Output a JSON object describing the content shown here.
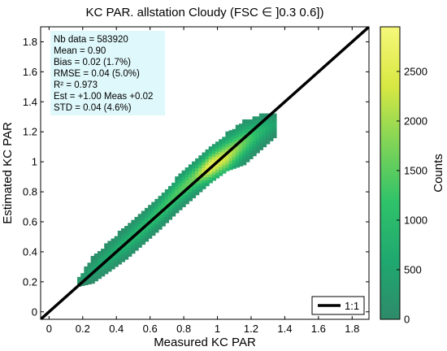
{
  "chart_data": {
    "type": "heatmap",
    "title": "KC PAR. allstation  Cloudy (FSC ∈ ]0.3 0.6])",
    "xlabel": "Measured KC PAR",
    "ylabel": "Estimated KC PAR",
    "xlim": [
      -0.05,
      1.9
    ],
    "ylim": [
      -0.05,
      1.9
    ],
    "xticks": [
      "0",
      "0.2",
      "0.4",
      "0.6",
      "0.8",
      "1",
      "1.2",
      "1.4",
      "1.6",
      "1.8"
    ],
    "yticks": [
      "0",
      "0.2",
      "0.4",
      "0.6",
      "0.8",
      "1",
      "1.2",
      "1.4",
      "1.6",
      "1.8"
    ],
    "colorbar": {
      "label": "Counts",
      "range": [
        0,
        2950
      ],
      "ticks": [
        "0",
        "500",
        "1000",
        "1500",
        "2000",
        "2500"
      ],
      "colors": [
        "#2e8b6a",
        "#1fa86f",
        "#2fc26a",
        "#7fd457",
        "#d9e843",
        "#f5f77a"
      ]
    },
    "density_profile": {
      "x": [
        0.17,
        0.25,
        0.35,
        0.45,
        0.55,
        0.65,
        0.75,
        0.85,
        0.95,
        1.05,
        1.15,
        1.25,
        1.33
      ],
      "center_y": [
        0.2,
        0.27,
        0.36,
        0.45,
        0.55,
        0.66,
        0.78,
        0.88,
        0.96,
        1.03,
        1.12,
        1.2,
        1.24
      ],
      "lower_y": [
        0.17,
        0.19,
        0.27,
        0.35,
        0.45,
        0.55,
        0.66,
        0.76,
        0.86,
        0.94,
        0.98,
        1.08,
        1.16
      ],
      "upper_y": [
        0.22,
        0.35,
        0.46,
        0.56,
        0.66,
        0.76,
        0.88,
        0.99,
        1.09,
        1.18,
        1.26,
        1.3,
        1.3
      ],
      "peak_counts": [
        300,
        500,
        700,
        850,
        1000,
        1200,
        1400,
        1700,
        2700,
        2300,
        1600,
        900,
        500
      ]
    },
    "reference_line": {
      "name": "1:1",
      "slope": 1,
      "intercept": 0
    },
    "legend_position": "bottom-right",
    "stats": [
      "Nb data  = 583920",
      "Mean   =  0.90",
      "Bias    = 0.02 (1.7%)",
      "RMSE  = 0.04 (5.0%)",
      "R²       = 0.973",
      "Est  = +1.00 Meas +0.02",
      "STD     = 0.04 (4.6%)"
    ]
  }
}
